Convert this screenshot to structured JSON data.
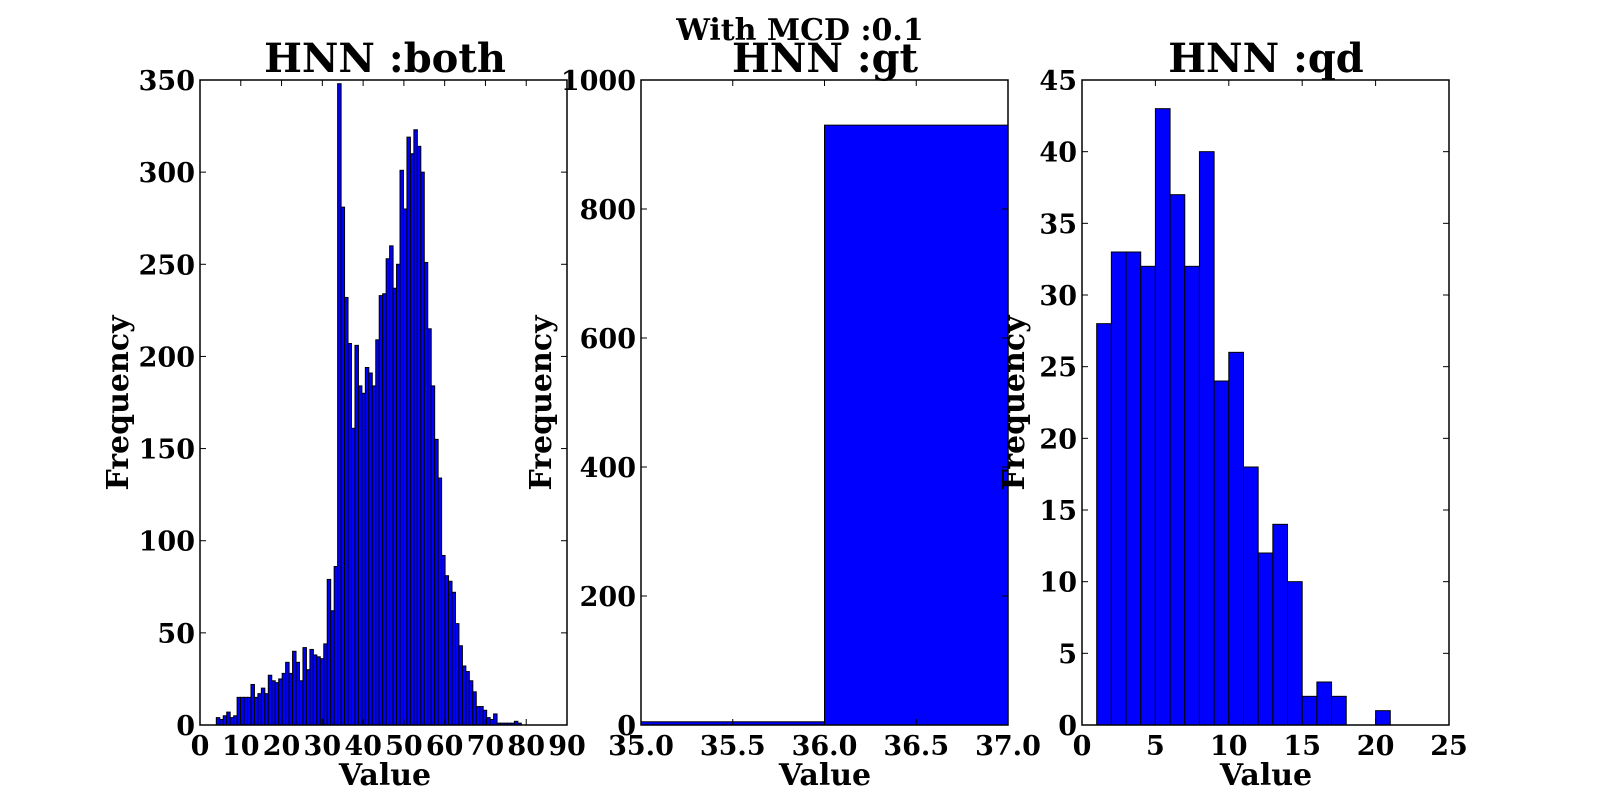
{
  "figure": {
    "suptitle": "With MCD :0.1"
  },
  "colors": {
    "bar_fill": "#0000ff",
    "bar_edge": "#000000"
  },
  "chart_data": [
    {
      "type": "bar",
      "title": "HNN :both",
      "xlabel": "Value",
      "ylabel": "Frequency",
      "xlim": [
        0,
        90
      ],
      "ylim": [
        0,
        350
      ],
      "xticks": [
        0,
        10,
        20,
        30,
        40,
        50,
        60,
        70,
        80,
        90
      ],
      "yticks": [
        0,
        50,
        100,
        150,
        200,
        250,
        300,
        350
      ],
      "xtick_labels": [
        "0",
        "10",
        "20",
        "30",
        "40",
        "50",
        "60",
        "70",
        "80",
        "90"
      ],
      "ytick_labels": [
        "0",
        "50",
        "100",
        "150",
        "200",
        "250",
        "300",
        "350"
      ],
      "bin_start": 4,
      "bin_width": 0.85,
      "values": [
        4,
        3,
        5,
        7,
        4,
        5,
        15,
        15,
        15,
        15,
        22,
        15,
        17,
        20,
        17,
        27,
        24,
        23,
        25,
        28,
        34,
        28,
        40,
        34,
        24,
        42,
        30,
        41,
        38,
        37,
        36,
        44,
        79,
        62,
        86,
        348,
        281,
        232,
        207,
        161,
        206,
        184,
        180,
        194,
        191,
        184,
        209,
        233,
        234,
        253,
        260,
        237,
        250,
        301,
        280,
        319,
        310,
        323,
        314,
        300,
        251,
        215,
        184,
        155,
        134,
        92,
        81,
        78,
        72,
        55,
        43,
        32,
        29,
        24,
        18,
        10,
        10,
        8,
        4,
        3,
        6,
        1,
        1,
        1,
        1,
        1,
        2,
        1
      ]
    },
    {
      "type": "bar",
      "title": "HNN :gt",
      "xlabel": "Value",
      "ylabel": "Frequency",
      "xlim": [
        35.0,
        37.0
      ],
      "ylim": [
        0,
        1000
      ],
      "xticks": [
        35.0,
        35.5,
        36.0,
        36.5,
        37.0
      ],
      "yticks": [
        0,
        200,
        400,
        600,
        800,
        1000
      ],
      "xtick_labels": [
        "35.0",
        "35.5",
        "36.0",
        "36.5",
        "37.0"
      ],
      "ytick_labels": [
        "0",
        "200",
        "400",
        "600",
        "800",
        "1000"
      ],
      "bins": [
        {
          "start": 35.0,
          "end": 36.0,
          "value": 5
        },
        {
          "start": 36.0,
          "end": 37.0,
          "value": 930
        }
      ]
    },
    {
      "type": "bar",
      "title": "HNN :qd",
      "xlabel": "Value",
      "ylabel": "Frequency",
      "xlim": [
        0,
        25
      ],
      "ylim": [
        0,
        45
      ],
      "xticks": [
        0,
        5,
        10,
        15,
        20,
        25
      ],
      "yticks": [
        0,
        5,
        10,
        15,
        20,
        25,
        30,
        35,
        40,
        45
      ],
      "xtick_labels": [
        "0",
        "5",
        "10",
        "15",
        "20",
        "25"
      ],
      "ytick_labels": [
        "0",
        "5",
        "10",
        "15",
        "20",
        "25",
        "30",
        "35",
        "40",
        "45"
      ],
      "bin_start": 1,
      "bin_width": 1,
      "values": [
        28,
        33,
        33,
        32,
        43,
        37,
        32,
        40,
        24,
        26,
        18,
        12,
        14,
        10,
        2,
        3,
        2,
        0,
        0,
        1
      ]
    }
  ]
}
